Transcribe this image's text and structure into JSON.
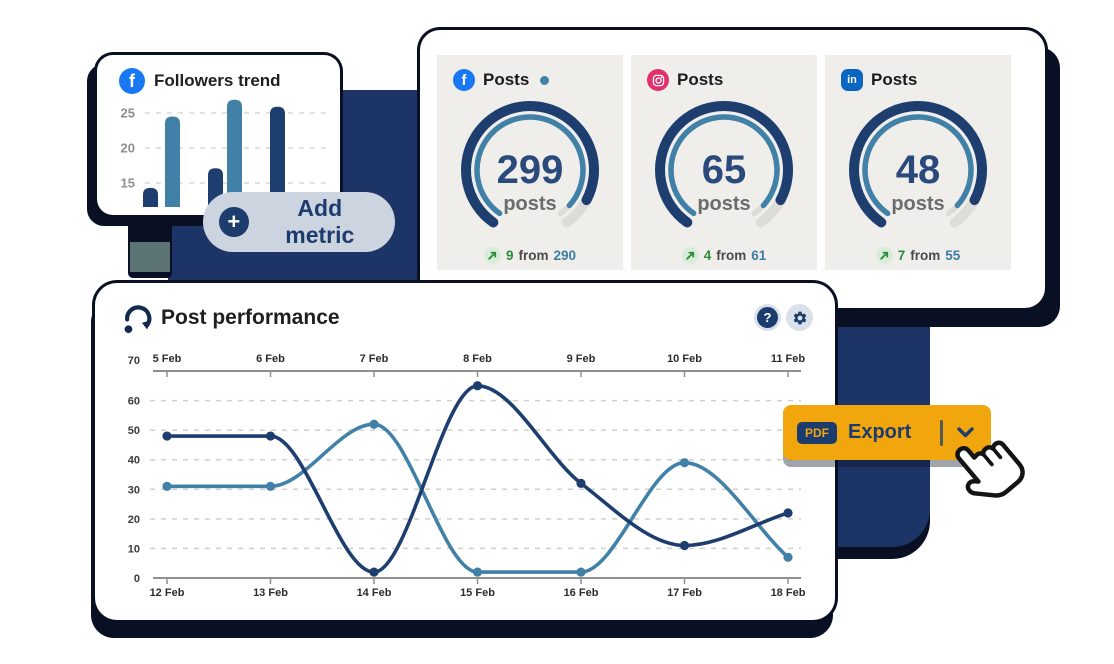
{
  "colors": {
    "backdrop_navy": "#1d3566",
    "shadow_navy": "#0a1024",
    "chart_navy": "#1d3e6e",
    "chart_blue": "#4181a8",
    "export_orange": "#f2a60d",
    "tile_background": "#efeeeb",
    "pill_background": "#cbd4df",
    "delta_green": "#2e8b3a",
    "previous_blue": "#3c7ca3",
    "facebook_blue": "#1877f2",
    "instagram_pink": "#e1306c",
    "linkedin_blue": "#0a66c2"
  },
  "icon_glyphs": {
    "facebook": "f",
    "linkedin": "in",
    "plus": "+",
    "question": "?"
  },
  "followers_card": {
    "title": "Followers trend",
    "icon": "facebook-icon",
    "chart_data": {
      "type": "bar",
      "values": [
        14.3,
        24.5,
        17.1,
        26.9,
        25.9
      ],
      "bar_colors": [
        "navy",
        "blue",
        "navy",
        "blue",
        "navy"
      ],
      "yticks": [
        25,
        20,
        15
      ],
      "grid": "dashed-horizontal"
    }
  },
  "add_metric": {
    "label": "Add metric"
  },
  "gauges_card": {
    "tiles": [
      {
        "platform": "facebook",
        "icon": "facebook-icon",
        "title": "Posts",
        "has_dot": true,
        "value": "299",
        "unit": "posts",
        "delta": "9",
        "from_label": "from",
        "previous": "290"
      },
      {
        "platform": "instagram",
        "icon": "instagram-icon",
        "title": "Posts",
        "has_dot": false,
        "value": "65",
        "unit": "posts",
        "delta": "4",
        "from_label": "from",
        "previous": "61"
      },
      {
        "platform": "linkedin",
        "icon": "linkedin-icon",
        "title": "Posts",
        "has_dot": false,
        "value": "48",
        "unit": "posts",
        "delta": "7",
        "from_label": "from",
        "previous": "55"
      }
    ]
  },
  "performance_card": {
    "title": "Post performance",
    "help_label": "?",
    "chart_data": {
      "type": "line",
      "x_top_labels": [
        "5 Feb",
        "6 Feb",
        "7 Feb",
        "8 Feb",
        "9 Feb",
        "10 Feb",
        "11 Feb"
      ],
      "x_bottom_labels": [
        "12 Feb",
        "13 Feb",
        "14 Feb",
        "15 Feb",
        "16 Feb",
        "17 Feb",
        "18 Feb"
      ],
      "yticks": [
        70,
        60,
        50,
        40,
        30,
        20,
        10,
        0
      ],
      "ylim": [
        0,
        70
      ],
      "grid": "dashed-horizontal",
      "legend": "none",
      "series": [
        {
          "name": "series-dark",
          "color": "#1d3e6e",
          "values": [
            48,
            48,
            2,
            65,
            32,
            11,
            22
          ]
        },
        {
          "name": "series-light",
          "color": "#4181a8",
          "values": [
            31,
            31,
            52,
            2,
            2,
            39,
            7
          ]
        }
      ]
    }
  },
  "export_button": {
    "badge": "PDF",
    "label": "Export"
  }
}
